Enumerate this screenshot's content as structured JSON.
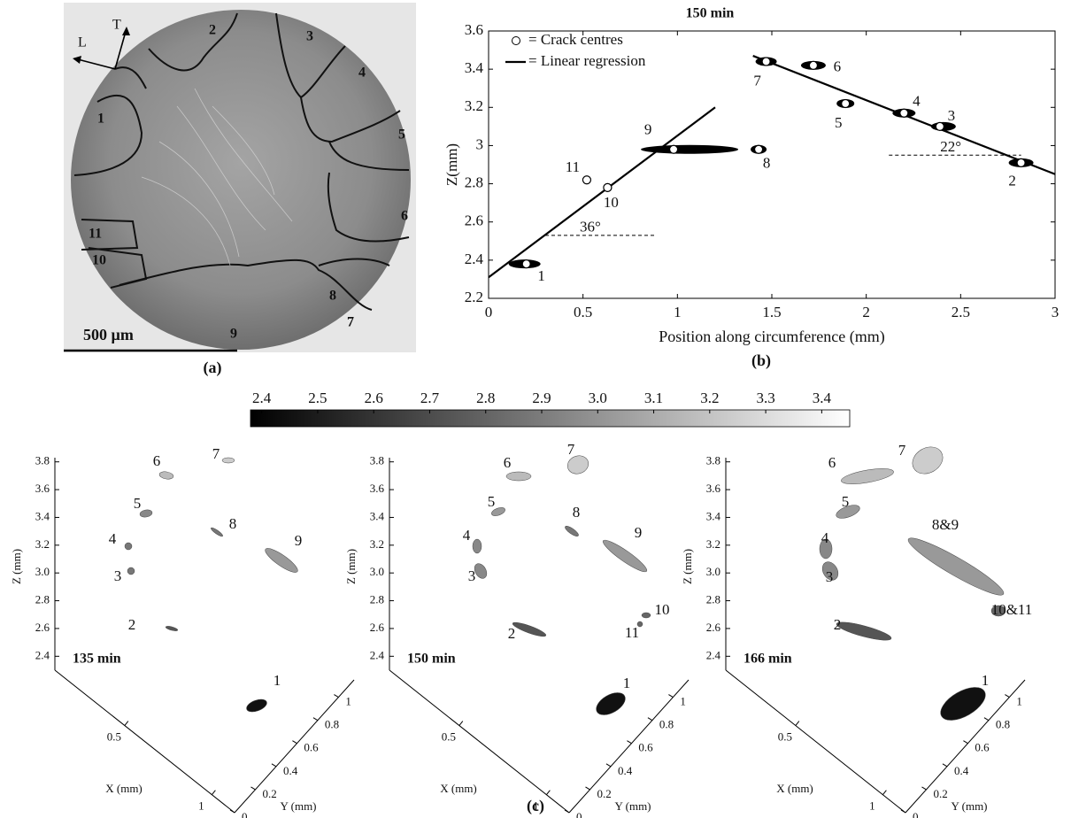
{
  "micrograph": {
    "directions": [
      "T",
      "L"
    ],
    "region_labels": [
      "1",
      "2",
      "3",
      "4",
      "5",
      "6",
      "7",
      "8",
      "9",
      "10",
      "11"
    ],
    "scale_bar": "500 µm",
    "caption": "(a)"
  },
  "chart_data": [
    {
      "type": "scatter",
      "title": "150 min",
      "x_label": "Position along circumference (mm)",
      "y_label": "Z(mm)",
      "xlim": [
        0,
        3
      ],
      "ylim": [
        2.2,
        3.6
      ],
      "xticks": [
        0,
        0.5,
        1,
        1.5,
        2,
        2.5,
        3
      ],
      "yticks": [
        2.2,
        2.4,
        2.6,
        2.8,
        3,
        3.2,
        3.4,
        3.6
      ],
      "points": {
        "name": "= Crack centres",
        "color": "#ffffff",
        "labels": [
          "1",
          "2",
          "3",
          "4",
          "5",
          "6",
          "7",
          "8",
          "9",
          "10",
          "11"
        ],
        "x": [
          0.2,
          2.82,
          2.39,
          2.2,
          1.89,
          1.72,
          1.47,
          1.43,
          0.98,
          0.63,
          0.52
        ],
        "y": [
          2.38,
          2.91,
          3.1,
          3.17,
          3.22,
          3.42,
          3.44,
          2.98,
          2.98,
          2.78,
          2.82
        ]
      },
      "regression": {
        "name": "= Linear regression",
        "color": "#000000",
        "lines": [
          {
            "x": [
              0,
              1.2
            ],
            "y": [
              2.31,
              3.2
            ]
          },
          {
            "x": [
              1.4,
              3
            ],
            "y": [
              3.47,
              2.85
            ]
          }
        ]
      },
      "reference_lines": [
        {
          "x": [
            0.3,
            0.88
          ],
          "y": [
            2.53,
            2.53
          ],
          "label": "36°"
        },
        {
          "x": [
            2.12,
            2.82
          ],
          "y": [
            2.95,
            2.95
          ],
          "label": "22°"
        }
      ],
      "caption": "(b)"
    },
    {
      "type": "colorbar",
      "lim": [
        2.38,
        3.45
      ],
      "colors": [
        "#000000",
        "#ffffff"
      ],
      "ticks": [
        2.4,
        2.5,
        2.6,
        2.7,
        2.8,
        2.9,
        {
          "value": 3,
          "label": "3.0"
        },
        3.1,
        3.2,
        3.3,
        3.4
      ]
    },
    {
      "type": "scatter3d",
      "title": "135 min",
      "x_label": "X (mm)",
      "y_label": "Y (mm)",
      "z_label": "Z (mm)",
      "xlim": [
        0.1,
        1.13
      ],
      "ylim": [
        0,
        1.15
      ],
      "zlim": [
        2.3,
        3.83
      ],
      "xticks": [
        0.5,
        1
      ],
      "yticks": [
        0,
        0.2,
        0.4,
        0.6,
        0.8,
        1
      ],
      "zticks": [
        2.4,
        2.6,
        2.8,
        {
          "value": 3,
          "label": "3.0"
        },
        3.2,
        3.4,
        3.6,
        3.8
      ],
      "crack_labels": [
        "1",
        "2",
        "3",
        "4",
        "5",
        "6",
        "7",
        "8",
        "9"
      ]
    },
    {
      "type": "scatter3d",
      "title": "150 min",
      "x_label": "X (mm)",
      "y_label": "Y (mm)",
      "z_label": "Z (mm)",
      "xlim": [
        0.1,
        1.13
      ],
      "ylim": [
        0,
        1.15
      ],
      "zlim": [
        2.3,
        3.83
      ],
      "xticks": [
        0.5,
        1
      ],
      "yticks": [
        0,
        0.2,
        0.4,
        0.6,
        0.8,
        1
      ],
      "zticks": [
        2.4,
        2.6,
        2.8,
        {
          "value": 3,
          "label": "3.0"
        },
        3.2,
        3.4,
        3.6,
        3.8
      ],
      "crack_labels": [
        "1",
        "2",
        "3",
        "4",
        "5",
        "6",
        "7",
        "8",
        "9",
        "10",
        "11"
      ]
    },
    {
      "type": "scatter3d",
      "title": "166 min",
      "x_label": "X (mm)",
      "y_label": "Y (mm)",
      "z_label": "Z (mm)",
      "xlim": [
        0.1,
        1.13
      ],
      "ylim": [
        0,
        1.15
      ],
      "zlim": [
        2.3,
        3.83
      ],
      "xticks": [
        0.5,
        1
      ],
      "yticks": [
        0,
        0.2,
        0.4,
        0.6,
        0.8,
        1
      ],
      "zticks": [
        2.4,
        2.6,
        2.8,
        {
          "value": 3,
          "label": "3.0"
        },
        3.2,
        3.4,
        3.6,
        3.8
      ],
      "crack_labels": [
        "1",
        "2",
        "3",
        "4",
        "5",
        "6",
        "7",
        "8&9",
        "10&11"
      ]
    }
  ],
  "caption": "(c)"
}
